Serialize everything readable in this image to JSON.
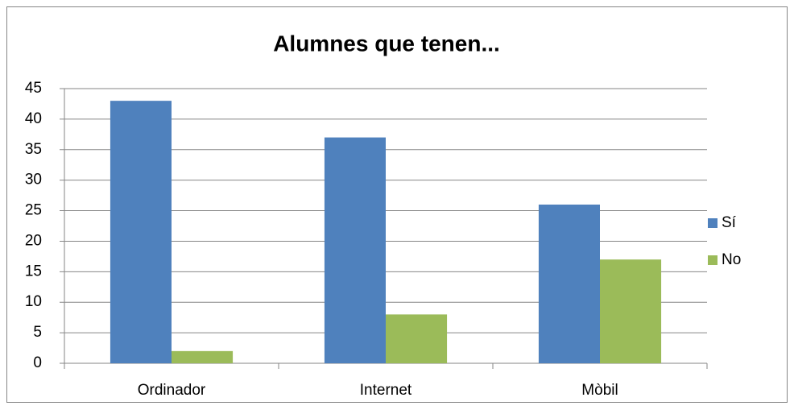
{
  "chart_data": {
    "type": "bar",
    "title": "Alumnes que tenen...",
    "categories": [
      "Ordinador",
      "Internet",
      "Mòbil"
    ],
    "series": [
      {
        "name": "Sí",
        "color": "#4f81bd",
        "values": [
          43,
          37,
          26
        ]
      },
      {
        "name": "No",
        "color": "#9bbb59",
        "values": [
          2,
          8,
          17
        ]
      }
    ],
    "ylim": [
      0,
      45
    ],
    "yticks": [
      0,
      5,
      10,
      15,
      20,
      25,
      30,
      35,
      40,
      45
    ],
    "grid": true,
    "legend": "right"
  }
}
